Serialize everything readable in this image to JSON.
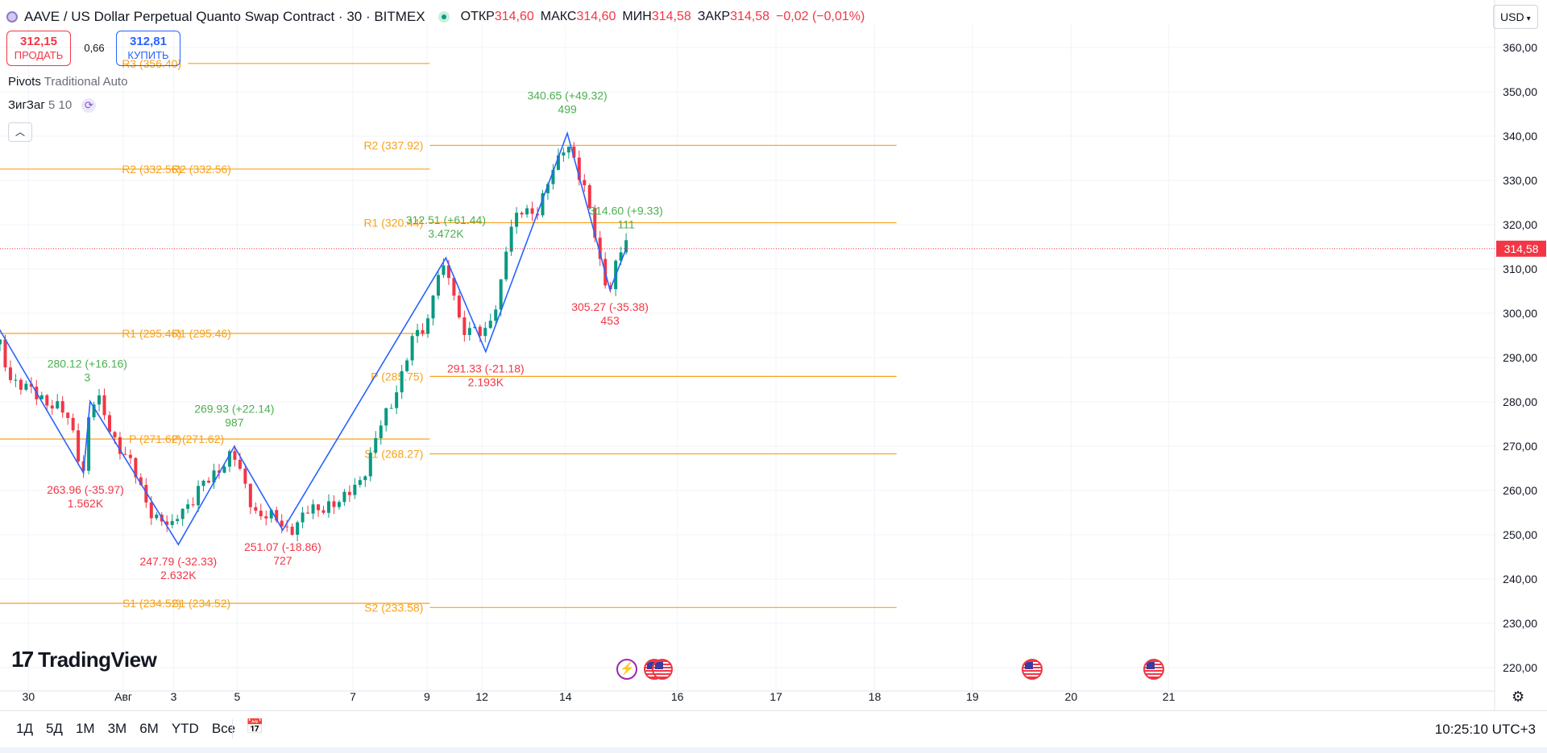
{
  "header": {
    "title": "AAVE / US Dollar Perpetual Quanto Swap Contract · 30 · BITMEX",
    "ohlc": [
      {
        "key": "ОТКР",
        "value": "314,60"
      },
      {
        "key": "МАКС",
        "value": "314,60"
      },
      {
        "key": "МИН",
        "value": "314,58"
      },
      {
        "key": "ЗАКР",
        "value": "314,58"
      }
    ],
    "change": "−0,02 (−0,01%)"
  },
  "trade": {
    "sell_price": "312,15",
    "sell_label": "ПРОДАТЬ",
    "spread": "0,66",
    "buy_price": "312,81",
    "buy_label": "КУПИТЬ"
  },
  "indicators": {
    "pivots_name": "Pivots",
    "pivots_args": "Traditional Auto",
    "zigzag_name": "ЗигЗаг",
    "zigzag_args": "5 10"
  },
  "currency": "USD",
  "branding": "TradingView",
  "bottombar": {
    "ranges": [
      "1Д",
      "5Д",
      "1М",
      "3М",
      "6М",
      "YTD",
      "Все"
    ],
    "clock": "10:25:10 UTC+3"
  },
  "colors": {
    "up": "#089981",
    "down": "#f23645",
    "zigzag": "#2962ff",
    "pivot": "#f7a21b",
    "label_up": "#4caf50",
    "label_down": "#f23645"
  },
  "chart_data": {
    "type": "candlestick",
    "symbol": "AAVE / US Dollar Perpetual Quanto Swap Contract",
    "interval": "30",
    "exchange": "BITMEX",
    "y_axis": {
      "ylim": [
        215,
        365
      ],
      "ticks": [
        "220,00",
        "230,00",
        "240,00",
        "250,00",
        "260,00",
        "270,00",
        "280,00",
        "290,00",
        "300,00",
        "310,00",
        "320,00",
        "330,00",
        "340,00",
        "350,00",
        "360,00"
      ],
      "last_price": "314,58",
      "last_price_value": 314.58
    },
    "x_axis": {
      "xlim": [
        0,
        22.5
      ],
      "ticks": [
        {
          "label": "30",
          "t": 0.3
        },
        {
          "label": "Авг",
          "t": 1.3
        },
        {
          "label": "3",
          "t": 1.83
        },
        {
          "label": "5",
          "t": 2.5
        },
        {
          "label": "7",
          "t": 3.72
        },
        {
          "label": "9",
          "t": 4.5
        },
        {
          "label": "12",
          "t": 5.08
        },
        {
          "label": "14",
          "t": 5.96
        },
        {
          "label": "16",
          "t": 7.14
        },
        {
          "label": "17",
          "t": 8.18
        },
        {
          "label": "18",
          "t": 9.22
        },
        {
          "label": "19",
          "t": 10.25
        },
        {
          "label": "20",
          "t": 11.29
        },
        {
          "label": "21",
          "t": 12.32
        }
      ]
    },
    "price_path": [
      [
        0.0,
        293
      ],
      [
        0.12,
        286
      ],
      [
        0.25,
        282
      ],
      [
        0.45,
        282
      ],
      [
        0.6,
        278
      ],
      [
        0.75,
        275
      ],
      [
        0.88,
        265
      ],
      [
        0.95,
        279
      ],
      [
        1.05,
        279
      ],
      [
        1.2,
        273
      ],
      [
        1.35,
        266
      ],
      [
        1.5,
        260
      ],
      [
        1.65,
        254
      ],
      [
        1.8,
        250
      ],
      [
        1.9,
        257
      ],
      [
        2.05,
        258
      ],
      [
        2.2,
        262
      ],
      [
        2.3,
        266
      ],
      [
        2.45,
        268
      ],
      [
        2.55,
        262
      ],
      [
        2.7,
        256
      ],
      [
        2.85,
        253
      ],
      [
        3.0,
        252
      ],
      [
        3.15,
        253
      ],
      [
        3.3,
        255
      ],
      [
        3.45,
        258
      ],
      [
        3.6,
        256
      ],
      [
        3.75,
        262
      ],
      [
        3.9,
        267
      ],
      [
        4.05,
        276
      ],
      [
        4.2,
        285
      ],
      [
        4.35,
        293
      ],
      [
        4.5,
        298
      ],
      [
        4.6,
        310
      ],
      [
        4.72,
        308
      ],
      [
        4.85,
        298
      ],
      [
        5.0,
        297
      ],
      [
        5.1,
        293
      ],
      [
        5.25,
        304
      ],
      [
        5.35,
        318
      ],
      [
        5.5,
        322
      ],
      [
        5.65,
        324
      ],
      [
        5.8,
        330
      ],
      [
        5.9,
        334
      ],
      [
        5.97,
        340
      ],
      [
        6.05,
        336
      ],
      [
        6.15,
        328
      ],
      [
        6.25,
        319
      ],
      [
        6.32,
        312
      ],
      [
        6.42,
        306
      ],
      [
        6.52,
        313
      ],
      [
        6.6,
        314.6
      ]
    ],
    "zigzag": {
      "points": [
        {
          "t": -0.05,
          "price": 298
        },
        {
          "t": 0.88,
          "price": 263.96
        },
        {
          "t": 0.95,
          "price": 280.12
        },
        {
          "t": 1.88,
          "price": 247.79
        },
        {
          "t": 2.47,
          "price": 269.93
        },
        {
          "t": 2.98,
          "price": 251.07
        },
        {
          "t": 4.7,
          "price": 312.51
        },
        {
          "t": 5.12,
          "price": 291.33
        },
        {
          "t": 5.98,
          "price": 340.65
        },
        {
          "t": 6.43,
          "price": 305.27
        },
        {
          "t": 6.6,
          "price": 314.6
        }
      ],
      "labels": [
        {
          "text": "280.12 (+16.16)",
          "sub": "3",
          "dir": "up",
          "t": 0.92,
          "price": 280.12
        },
        {
          "text": "263.96 (-35.97)",
          "sub": "1.562K",
          "dir": "down",
          "t": 0.9,
          "price": 263.96
        },
        {
          "text": "269.93 (+22.14)",
          "sub": "987",
          "dir": "up",
          "t": 2.47,
          "price": 269.93
        },
        {
          "text": "247.79 (-32.33)",
          "sub": "2.632K",
          "dir": "down",
          "t": 1.88,
          "price": 247.79
        },
        {
          "text": "251.07 (-18.86)",
          "sub": "727",
          "dir": "down",
          "t": 2.98,
          "price": 251.07
        },
        {
          "text": "312.51 (+61.44)",
          "sub": "3.472K",
          "dir": "up",
          "t": 4.7,
          "price": 312.51
        },
        {
          "text": "291.33 (-21.18)",
          "sub": "2.193K",
          "dir": "down",
          "t": 5.12,
          "price": 291.33
        },
        {
          "text": "340.65 (+49.32)",
          "sub": "499",
          "dir": "up",
          "t": 5.98,
          "price": 340.65
        },
        {
          "text": "305.27 (-35.38)",
          "sub": "453",
          "dir": "down",
          "t": 6.43,
          "price": 305.27
        },
        {
          "text": "314.60 (+9.33)",
          "sub": "111",
          "dir": "up",
          "t": 6.6,
          "price": 314.6
        }
      ]
    },
    "pivots": [
      {
        "period": 1,
        "t0": 0.0,
        "t1": 1.98,
        "levels": [
          {
            "label": "R2 (332.56)",
            "value": 332.56
          },
          {
            "label": "R1 (295.46)",
            "value": 295.46
          },
          {
            "label": "P (271.62)",
            "value": 271.62
          },
          {
            "label": "S1 (234.52)",
            "value": 234.52
          }
        ]
      },
      {
        "period": 2,
        "t0": 1.98,
        "t1": 4.53,
        "levels": [
          {
            "label": "R3 (356.40)",
            "value": 356.4
          },
          {
            "label": "R2 (332.56)",
            "value": 332.56
          },
          {
            "label": "R1 (295.46)",
            "value": 295.46
          },
          {
            "label": "P (271.62)",
            "value": 271.62
          },
          {
            "label": "S1 (234.52)",
            "value": 234.52
          }
        ]
      },
      {
        "period": 3,
        "t0": 4.53,
        "t1": 9.45,
        "levels": [
          {
            "label": "R2 (337.92)",
            "value": 337.92
          },
          {
            "label": "R1 (320.44)",
            "value": 320.44
          },
          {
            "label": "P (285.75)",
            "value": 285.75
          },
          {
            "label": "S1 (268.27)",
            "value": 268.27
          },
          {
            "label": "S2 (233.58)",
            "value": 233.58
          }
        ]
      }
    ],
    "grid": true,
    "events": [
      {
        "type": "flash",
        "t": 6.61
      },
      {
        "type": "flag",
        "t": 6.9
      },
      {
        "type": "flag",
        "t": 6.98
      },
      {
        "type": "flag",
        "t": 10.88
      },
      {
        "type": "flag",
        "t": 12.16
      }
    ]
  }
}
